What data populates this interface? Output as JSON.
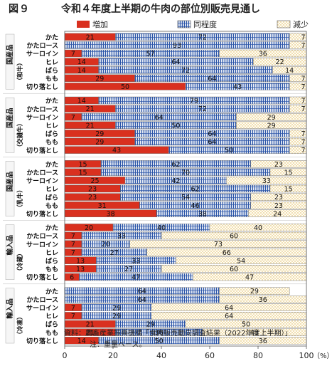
{
  "figure": {
    "number": "図９",
    "title": "令和４年度上半期の牛肉の部位別販売見通し"
  },
  "notes": {
    "source": "資料：農畜産業振興機構「食肉販売動向調査結果（2022年度上半期）」",
    "note": "注：重量ベース。"
  },
  "colors": {
    "increase": "#d9301f",
    "unchanged": "#2b55a8",
    "decrease": "#ddb24f",
    "frame": "#555555",
    "group_label_bg": "#1a1a1a"
  },
  "chart_data": {
    "type": "bar",
    "orientation": "horizontal",
    "stacked": true,
    "legend": {
      "position": "top",
      "items": [
        {
          "name": "増加",
          "pattern": "solid"
        },
        {
          "name": "同程度",
          "pattern": "vertical-lines"
        },
        {
          "name": "減少",
          "pattern": "dots"
        }
      ]
    },
    "xlim": [
      0,
      100
    ],
    "xticks": [
      0,
      20,
      40,
      60,
      80,
      100
    ],
    "xunit": "（%）",
    "groups": [
      {
        "label_main": "国産品",
        "label_sub": "（和牛）",
        "rows": [
          {
            "category": "かた",
            "values": [
              21,
              72,
              7
            ]
          },
          {
            "category": "かたロース",
            "values": [
              0,
              93,
              7
            ]
          },
          {
            "category": "サーロイン",
            "values": [
              7,
              57,
              36
            ]
          },
          {
            "category": "ヒレ",
            "values": [
              14,
              64,
              22
            ]
          },
          {
            "category": "ばら",
            "values": [
              14,
              72,
              14
            ]
          },
          {
            "category": "もも",
            "values": [
              29,
              64,
              7
            ]
          },
          {
            "category": "切り落とし",
            "values": [
              50,
              43,
              7
            ]
          }
        ]
      },
      {
        "label_main": "国産品",
        "label_sub": "（交雑牛）",
        "rows": [
          {
            "category": "かた",
            "values": [
              14,
              79,
              7
            ]
          },
          {
            "category": "かたロース",
            "values": [
              21,
              72,
              7
            ]
          },
          {
            "category": "サーロイン",
            "values": [
              7,
              64,
              29
            ]
          },
          {
            "category": "ヒレ",
            "values": [
              21,
              50,
              29
            ]
          },
          {
            "category": "ばら",
            "values": [
              29,
              64,
              7
            ]
          },
          {
            "category": "もも",
            "values": [
              29,
              64,
              7
            ]
          },
          {
            "category": "切り落とし",
            "values": [
              43,
              50,
              7
            ]
          }
        ]
      },
      {
        "label_main": "国産品",
        "label_sub": "（乳牛）",
        "rows": [
          {
            "category": "かた",
            "values": [
              15,
              62,
              23
            ]
          },
          {
            "category": "かたロース",
            "values": [
              15,
              70,
              15
            ]
          },
          {
            "category": "サーロイン",
            "values": [
              25,
              42,
              33
            ]
          },
          {
            "category": "ヒレ",
            "values": [
              23,
              62,
              15
            ]
          },
          {
            "category": "ばら",
            "values": [
              23,
              54,
              23
            ]
          },
          {
            "category": "もも",
            "values": [
              31,
              46,
              23
            ]
          },
          {
            "category": "切り落とし",
            "values": [
              38,
              38,
              24
            ]
          }
        ]
      },
      {
        "label_main": "輸入品",
        "label_sub": "（冷蔵）",
        "rows": [
          {
            "category": "かた",
            "values": [
              20,
              40,
              40
            ]
          },
          {
            "category": "かたロース",
            "values": [
              7,
              33,
              60
            ]
          },
          {
            "category": "サーロイン",
            "values": [
              7,
              20,
              73
            ]
          },
          {
            "category": "ヒレ",
            "values": [
              7,
              27,
              66
            ]
          },
          {
            "category": "ばら",
            "values": [
              13,
              33,
              54
            ]
          },
          {
            "category": "もも",
            "values": [
              13,
              27,
              60
            ]
          },
          {
            "category": "切り落とし",
            "values": [
              6,
              47,
              47
            ]
          }
        ]
      },
      {
        "label_main": "輸入品",
        "label_sub": "（冷凍）",
        "rows": [
          {
            "category": "かた",
            "values": [
              0,
              64,
              29
            ]
          },
          {
            "category": "かたロース",
            "values": [
              0,
              64,
              36
            ]
          },
          {
            "category": "サーロイン",
            "values": [
              7,
              29,
              64
            ]
          },
          {
            "category": "ヒレ",
            "values": [
              7,
              29,
              64
            ]
          },
          {
            "category": "ばら",
            "values": [
              21,
              29,
              50
            ]
          },
          {
            "category": "もも",
            "values": [
              21,
              36,
              43
            ]
          },
          {
            "category": "切り落とし",
            "values": [
              14,
              50,
              36
            ]
          }
        ]
      }
    ]
  }
}
